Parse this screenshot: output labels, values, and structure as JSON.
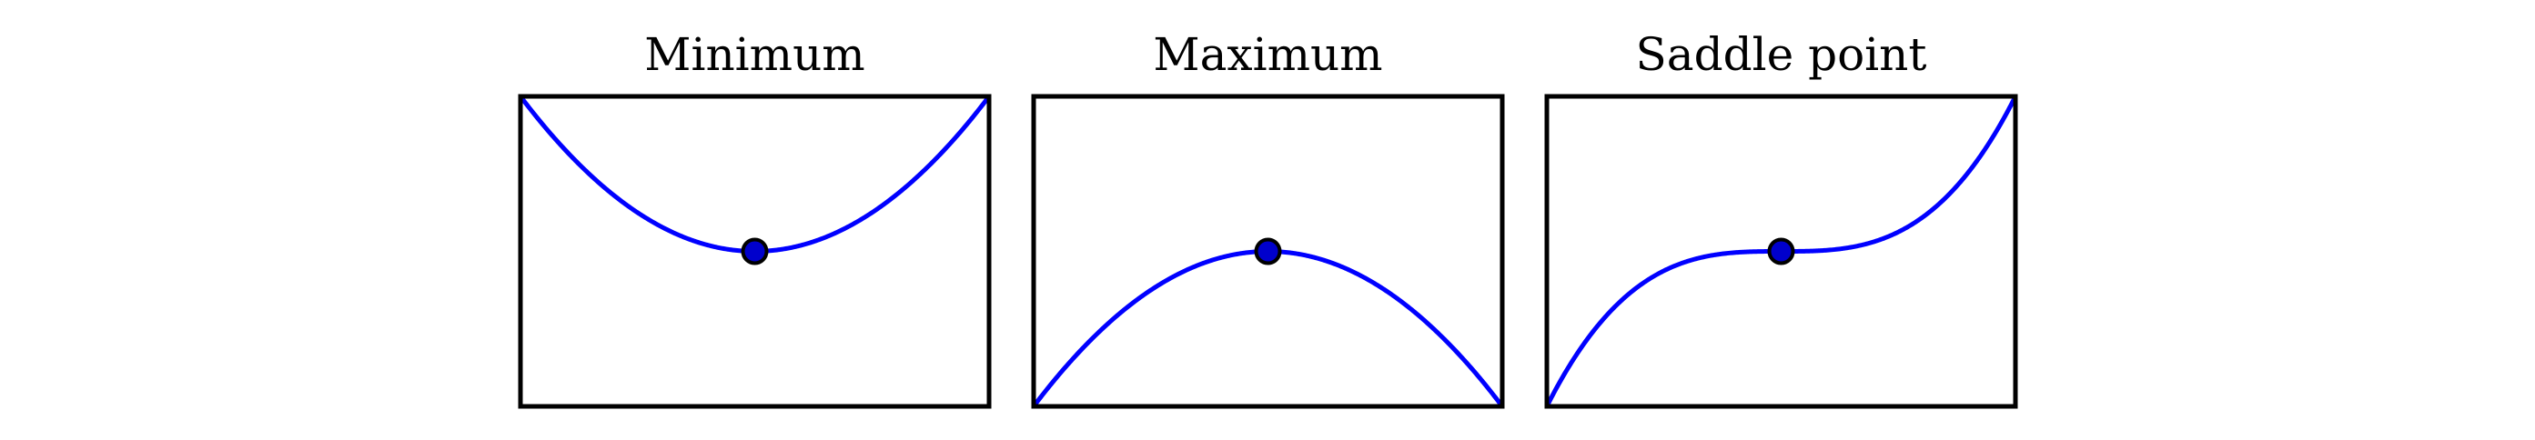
{
  "figure": {
    "panels": [
      {
        "title": "Minimum"
      },
      {
        "title": "Maximum"
      },
      {
        "title": "Saddle point"
      }
    ]
  },
  "chart_data": [
    {
      "type": "line",
      "title": "Minimum",
      "xlim": [
        -1,
        1
      ],
      "ylim": [
        -1,
        1
      ],
      "grid": false,
      "axis_ticks": false,
      "series": [
        {
          "function": "y = x^2",
          "color": "#0000ff"
        }
      ],
      "points": [
        {
          "x": 0,
          "y": 0,
          "color": "#0000cc"
        }
      ]
    },
    {
      "type": "line",
      "title": "Maximum",
      "xlim": [
        -1,
        1
      ],
      "ylim": [
        -1,
        1
      ],
      "grid": false,
      "axis_ticks": false,
      "series": [
        {
          "function": "y = -x^2",
          "color": "#0000ff"
        }
      ],
      "points": [
        {
          "x": 0,
          "y": 0,
          "color": "#0000cc"
        }
      ]
    },
    {
      "type": "line",
      "title": "Saddle point",
      "xlim": [
        -1,
        1
      ],
      "ylim": [
        -1,
        1
      ],
      "grid": false,
      "axis_ticks": false,
      "series": [
        {
          "function": "y = x^3",
          "color": "#0000ff"
        }
      ],
      "points": [
        {
          "x": 0,
          "y": 0,
          "color": "#0000cc"
        }
      ]
    }
  ]
}
